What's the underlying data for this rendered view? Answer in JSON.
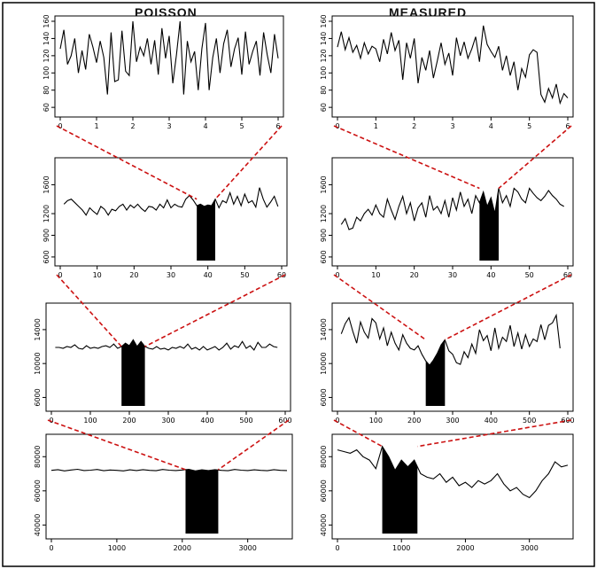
{
  "titles": {
    "left": "POISSON",
    "right": "MEASURED"
  },
  "chart_data": [
    {
      "column": "POISSON",
      "row": 1,
      "type": "line",
      "xlim": [
        0,
        6
      ],
      "xticks": [
        "0",
        "1",
        "2",
        "3",
        "4",
        "5",
        "6"
      ],
      "ylim": [
        55,
        160
      ],
      "yticks": [
        "60",
        "80",
        "100",
        "120",
        "140",
        "160"
      ],
      "highlight": null,
      "x": [
        0,
        0.1,
        0.2,
        0.3,
        0.4,
        0.5,
        0.6,
        0.7,
        0.8,
        0.9,
        1.0,
        1.1,
        1.2,
        1.3,
        1.4,
        1.5,
        1.6,
        1.7,
        1.8,
        1.9,
        2.0,
        2.1,
        2.2,
        2.3,
        2.4,
        2.5,
        2.6,
        2.7,
        2.8,
        2.9,
        3.0,
        3.1,
        3.2,
        3.3,
        3.4,
        3.5,
        3.6,
        3.7,
        3.8,
        3.9,
        4.0,
        4.1,
        4.2,
        4.3,
        4.4,
        4.5,
        4.6,
        4.7,
        4.8,
        4.9,
        5.0,
        5.1,
        5.2,
        5.3,
        5.4,
        5.5,
        5.6,
        5.7,
        5.8,
        5.9,
        6.0
      ],
      "y": [
        128,
        150,
        110,
        120,
        140,
        100,
        126,
        104,
        145,
        130,
        112,
        137,
        118,
        75,
        147,
        90,
        92,
        149,
        102,
        97,
        160,
        113,
        130,
        120,
        140,
        110,
        138,
        98,
        152,
        117,
        143,
        88,
        121,
        160,
        75,
        137,
        113,
        125,
        80,
        128,
        158,
        80,
        118,
        140,
        100,
        134,
        150,
        107,
        128,
        141,
        98,
        148,
        110,
        125,
        137,
        97,
        147,
        121,
        100,
        145,
        117
      ]
    },
    {
      "column": "MEASURED",
      "row": 1,
      "type": "line",
      "xlim": [
        0,
        6
      ],
      "xticks": [
        "0",
        "1",
        "2",
        "3",
        "4",
        "5",
        "6"
      ],
      "ylim": [
        55,
        160
      ],
      "yticks": [
        "60",
        "80",
        "100",
        "120",
        "140",
        "160"
      ],
      "highlight": null,
      "x": [
        0,
        0.1,
        0.2,
        0.3,
        0.4,
        0.5,
        0.6,
        0.7,
        0.8,
        0.9,
        1.0,
        1.1,
        1.2,
        1.3,
        1.4,
        1.5,
        1.6,
        1.7,
        1.8,
        1.9,
        2.0,
        2.1,
        2.2,
        2.3,
        2.4,
        2.5,
        2.6,
        2.7,
        2.8,
        2.9,
        3.0,
        3.1,
        3.2,
        3.3,
        3.4,
        3.5,
        3.6,
        3.7,
        3.8,
        3.9,
        4.0,
        4.1,
        4.2,
        4.3,
        4.4,
        4.5,
        4.6,
        4.7,
        4.8,
        4.9,
        5.0,
        5.1,
        5.2,
        5.3,
        5.4,
        5.5,
        5.6,
        5.7,
        5.8,
        5.9,
        6.0
      ],
      "y": [
        130,
        148,
        127,
        141,
        124,
        132,
        117,
        135,
        122,
        131,
        128,
        113,
        139,
        122,
        147,
        126,
        138,
        92,
        135,
        117,
        140,
        88,
        118,
        103,
        126,
        94,
        114,
        135,
        110,
        123,
        97,
        141,
        120,
        136,
        117,
        128,
        142,
        113,
        155,
        133,
        125,
        118,
        131,
        103,
        120,
        97,
        113,
        80,
        105,
        95,
        121,
        127,
        124,
        75,
        66,
        82,
        71,
        87,
        65,
        76,
        71
      ]
    },
    {
      "column": "POISSON",
      "row": 2,
      "type": "line",
      "xlim": [
        0,
        60
      ],
      "xticks": [
        "0",
        "10",
        "20",
        "30",
        "40",
        "50",
        "60"
      ],
      "ylim": [
        550,
        1900
      ],
      "yticks": [
        "600",
        "900",
        "1200",
        "1600"
      ],
      "highlight": [
        37,
        42
      ],
      "x": [
        1,
        2,
        3,
        4,
        5,
        6,
        7,
        8,
        9,
        10,
        11,
        12,
        13,
        14,
        15,
        16,
        17,
        18,
        19,
        20,
        21,
        22,
        23,
        24,
        25,
        26,
        27,
        28,
        29,
        30,
        31,
        32,
        33,
        34,
        35,
        36,
        37,
        38,
        39,
        40,
        41,
        42,
        43,
        44,
        45,
        46,
        47,
        48,
        49,
        50,
        51,
        52,
        53,
        54,
        55,
        56,
        57,
        58,
        59
      ],
      "y": [
        1330,
        1380,
        1400,
        1350,
        1300,
        1250,
        1180,
        1280,
        1230,
        1190,
        1300,
        1260,
        1180,
        1260,
        1240,
        1300,
        1330,
        1250,
        1320,
        1280,
        1330,
        1270,
        1230,
        1300,
        1290,
        1250,
        1330,
        1280,
        1390,
        1280,
        1330,
        1300,
        1290,
        1400,
        1450,
        1390,
        1310,
        1330,
        1300,
        1320,
        1310,
        1400,
        1280,
        1380,
        1350,
        1490,
        1330,
        1440,
        1310,
        1470,
        1350,
        1380,
        1290,
        1560,
        1400,
        1290,
        1360,
        1440,
        1300
      ]
    },
    {
      "column": "MEASURED",
      "row": 2,
      "type": "line",
      "xlim": [
        0,
        60
      ],
      "xticks": [
        "0",
        "10",
        "20",
        "30",
        "40",
        "50",
        "60"
      ],
      "ylim": [
        550,
        1900
      ],
      "yticks": [
        "600",
        "900",
        "1200",
        "1600"
      ],
      "highlight": [
        37,
        42
      ],
      "x": [
        1,
        2,
        3,
        4,
        5,
        6,
        7,
        8,
        9,
        10,
        11,
        12,
        13,
        14,
        15,
        16,
        17,
        18,
        19,
        20,
        21,
        22,
        23,
        24,
        25,
        26,
        27,
        28,
        29,
        30,
        31,
        32,
        33,
        34,
        35,
        36,
        37,
        38,
        39,
        40,
        41,
        42,
        43,
        44,
        45,
        46,
        47,
        48,
        49,
        50,
        51,
        52,
        53,
        54,
        55,
        56,
        57,
        58,
        59
      ],
      "y": [
        1050,
        1130,
        980,
        1000,
        1150,
        1100,
        1200,
        1260,
        1180,
        1320,
        1200,
        1150,
        1400,
        1250,
        1120,
        1300,
        1440,
        1200,
        1350,
        1100,
        1280,
        1350,
        1150,
        1450,
        1250,
        1300,
        1200,
        1380,
        1150,
        1420,
        1250,
        1500,
        1300,
        1400,
        1200,
        1450,
        1350,
        1500,
        1300,
        1420,
        1200,
        1550,
        1350,
        1450,
        1300,
        1550,
        1500,
        1400,
        1350,
        1550,
        1480,
        1420,
        1380,
        1440,
        1520,
        1450,
        1400,
        1330,
        1300
      ]
    },
    {
      "column": "POISSON",
      "row": 3,
      "type": "line",
      "xlim": [
        0,
        600
      ],
      "xticks": [
        "0",
        "100",
        "200",
        "300",
        "400",
        "500",
        "600"
      ],
      "ylim": [
        5000,
        16500
      ],
      "yticks": [
        "6000",
        "10000",
        "14000"
      ],
      "highlight": [
        180,
        240
      ],
      "x": [
        10,
        20,
        30,
        40,
        50,
        60,
        70,
        80,
        90,
        100,
        110,
        120,
        130,
        140,
        150,
        160,
        170,
        180,
        190,
        200,
        210,
        220,
        230,
        240,
        250,
        260,
        270,
        280,
        290,
        300,
        310,
        320,
        330,
        340,
        350,
        360,
        370,
        380,
        390,
        400,
        410,
        420,
        430,
        440,
        450,
        460,
        470,
        480,
        490,
        500,
        510,
        520,
        530,
        540,
        550,
        560,
        570,
        580
      ],
      "y": [
        11900,
        11900,
        11800,
        12000,
        11900,
        12200,
        11800,
        11700,
        12100,
        11800,
        11900,
        11800,
        12000,
        12100,
        11900,
        12300,
        11800,
        12000,
        12400,
        12100,
        12800,
        12000,
        12600,
        12000,
        11800,
        11700,
        12000,
        11700,
        11800,
        11600,
        11900,
        11800,
        12000,
        11800,
        12300,
        11700,
        11900,
        11600,
        12000,
        11600,
        11800,
        12000,
        11600,
        11900,
        12400,
        11700,
        12100,
        11900,
        12600,
        11800,
        12100,
        11600,
        12500,
        11900,
        11900,
        12300,
        12000,
        11900
      ]
    },
    {
      "column": "MEASURED",
      "row": 3,
      "type": "line",
      "xlim": [
        0,
        600
      ],
      "xticks": [
        "0",
        "100",
        "200",
        "300",
        "400",
        "500",
        "600"
      ],
      "ylim": [
        5000,
        16500
      ],
      "yticks": [
        "6000",
        "10000",
        "14000"
      ],
      "highlight": [
        230,
        280
      ],
      "x": [
        10,
        20,
        30,
        40,
        50,
        60,
        70,
        80,
        90,
        100,
        110,
        120,
        130,
        140,
        150,
        160,
        170,
        180,
        190,
        200,
        210,
        220,
        230,
        240,
        250,
        260,
        270,
        280,
        290,
        300,
        310,
        320,
        330,
        340,
        350,
        360,
        370,
        380,
        390,
        400,
        410,
        420,
        430,
        440,
        450,
        460,
        470,
        480,
        490,
        500,
        510,
        520,
        530,
        540,
        550,
        560,
        570,
        580
      ],
      "y": [
        13500,
        14700,
        15400,
        13800,
        12400,
        14900,
        13700,
        13000,
        15300,
        14800,
        12900,
        14200,
        12100,
        13700,
        12400,
        11600,
        13400,
        12400,
        11800,
        11600,
        12100,
        11100,
        10300,
        9800,
        10400,
        11200,
        12200,
        12800,
        11500,
        11100,
        10100,
        9900,
        11400,
        10700,
        12300,
        11200,
        14000,
        12700,
        13300,
        11500,
        14200,
        11800,
        13100,
        12600,
        14500,
        12000,
        13600,
        11700,
        13400,
        12000,
        12900,
        12600,
        14600,
        12800,
        14500,
        14800,
        15700,
        11800
      ]
    },
    {
      "column": "POISSON",
      "row": 4,
      "type": "line",
      "xlim": [
        0,
        3600
      ],
      "xticks": [
        "0",
        "1000",
        "2000",
        "3000"
      ],
      "ylim": [
        35000,
        90000
      ],
      "yticks": [
        "40000",
        "60000",
        "80000"
      ],
      "highlight": [
        2050,
        2550
      ],
      "x": [
        0,
        100,
        200,
        300,
        400,
        500,
        600,
        700,
        800,
        900,
        1000,
        1100,
        1200,
        1300,
        1400,
        1500,
        1600,
        1700,
        1800,
        1900,
        2000,
        2100,
        2200,
        2300,
        2400,
        2500,
        2600,
        2700,
        2800,
        2900,
        3000,
        3100,
        3200,
        3300,
        3400,
        3500,
        3600
      ],
      "y": [
        72000,
        72400,
        71700,
        72200,
        72600,
        71900,
        72100,
        72500,
        71800,
        72200,
        72000,
        71700,
        72300,
        71900,
        72400,
        72000,
        71800,
        72500,
        72100,
        71900,
        72200,
        72600,
        71700,
        72300,
        71900,
        72400,
        72000,
        71800,
        72500,
        72100,
        71900,
        72300,
        72000,
        71800,
        72400,
        72000,
        71900
      ]
    },
    {
      "column": "MEASURED",
      "row": 4,
      "type": "line",
      "xlim": [
        0,
        3600
      ],
      "xticks": [
        "0",
        "1000",
        "2000",
        "3000"
      ],
      "ylim": [
        35000,
        90000
      ],
      "yticks": [
        "40000",
        "60000",
        "80000"
      ],
      "highlight": [
        700,
        1250
      ],
      "x": [
        0,
        100,
        200,
        300,
        400,
        500,
        600,
        700,
        800,
        900,
        1000,
        1100,
        1200,
        1300,
        1400,
        1500,
        1600,
        1700,
        1800,
        1900,
        2000,
        2100,
        2200,
        2300,
        2400,
        2500,
        2600,
        2700,
        2800,
        2900,
        3000,
        3100,
        3200,
        3300,
        3400,
        3500,
        3600
      ],
      "y": [
        84000,
        83000,
        82000,
        84000,
        80000,
        78000,
        73000,
        86000,
        80000,
        72000,
        78000,
        74000,
        78000,
        70000,
        68000,
        67000,
        70000,
        65000,
        68000,
        63000,
        65000,
        62000,
        66000,
        64000,
        66000,
        70000,
        64000,
        60000,
        62000,
        58000,
        56000,
        60000,
        66000,
        70000,
        77000,
        74000,
        75000
      ]
    }
  ],
  "zoom_connectors": {
    "color": "#cc1111"
  }
}
